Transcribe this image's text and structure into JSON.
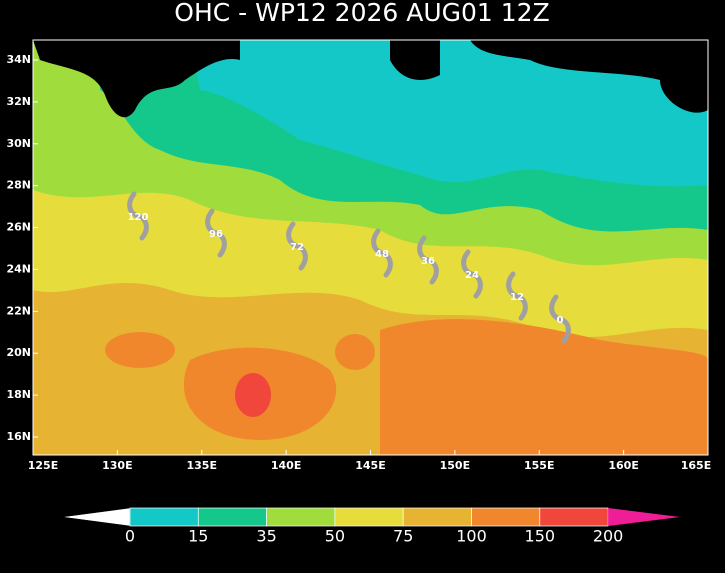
{
  "title": "OHC - WP12 2026 AUG01 12Z",
  "map": {
    "lat_labels": [
      "34N",
      "32N",
      "30N",
      "28N",
      "26N",
      "24N",
      "22N",
      "20N",
      "18N",
      "16N"
    ],
    "lon_labels": [
      "125E",
      "130E",
      "135E",
      "140E",
      "145E",
      "150E",
      "155E",
      "160E",
      "165E"
    ],
    "track": [
      120,
      96,
      72,
      48,
      36,
      24,
      12,
      0
    ]
  },
  "colorbar": {
    "labels": [
      0,
      15,
      35,
      50,
      75,
      100,
      150,
      200
    ],
    "colors": [
      "#ffffff",
      "#14c8c8",
      "#14c88c",
      "#a0dc3c",
      "#e6dc3c",
      "#e6b432",
      "#f0872d",
      "#f0463c",
      "#f01e96"
    ]
  }
}
